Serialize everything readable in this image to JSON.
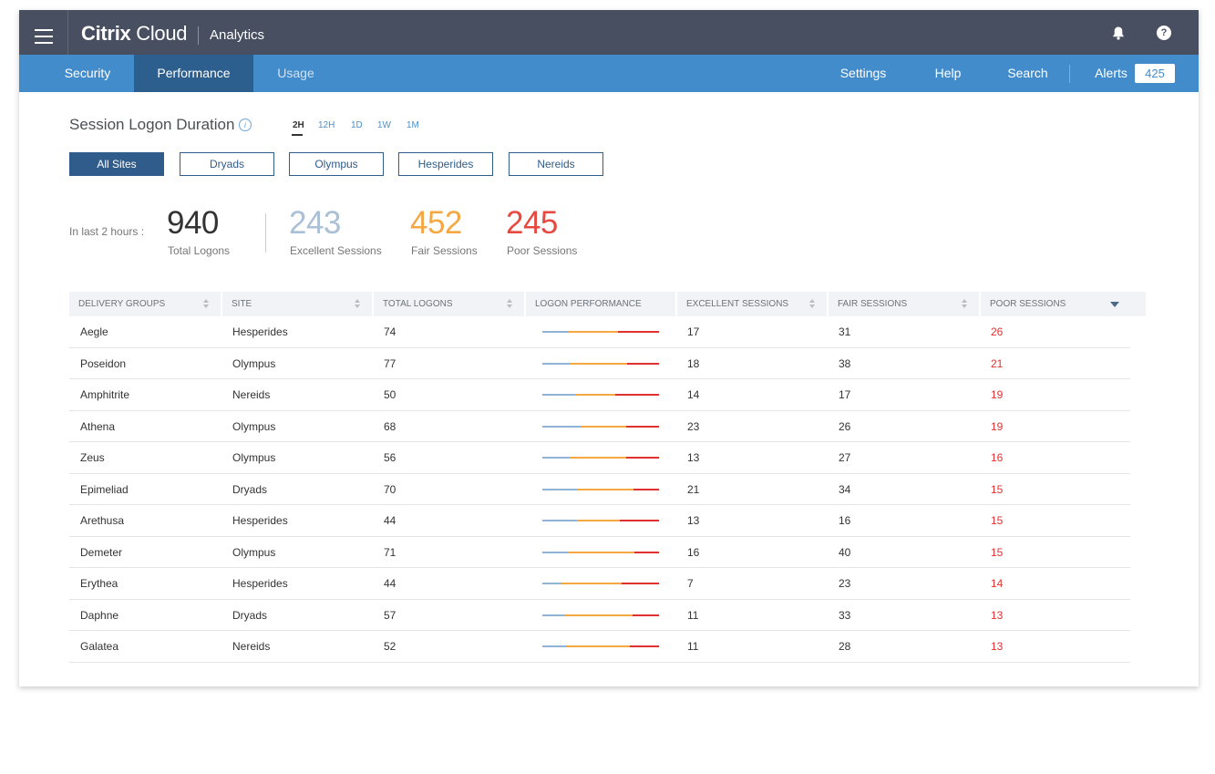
{
  "brand": {
    "name_bold": "Citrix",
    "name_light": " Cloud",
    "product": "Analytics"
  },
  "topbar": {
    "help_glyph": "?"
  },
  "nav": {
    "left": [
      {
        "label": "Security",
        "state": "normal"
      },
      {
        "label": "Performance",
        "state": "active"
      },
      {
        "label": "Usage",
        "state": "dim"
      }
    ],
    "right": [
      {
        "label": "Settings"
      },
      {
        "label": "Help"
      },
      {
        "label": "Search"
      },
      {
        "label": "Alerts"
      }
    ],
    "alerts_count": "425"
  },
  "section": {
    "title": "Session Logon Duration",
    "info_glyph": "i",
    "ranges": [
      "2H",
      "12H",
      "1D",
      "1W",
      "1M"
    ],
    "active_range": "2H"
  },
  "sites": {
    "buttons": [
      "All Sites",
      "Dryads",
      "Olympus",
      "Hesperides",
      "Nereids"
    ],
    "active": "All Sites"
  },
  "kpis": {
    "intro": "In last 2 hours :",
    "items": [
      {
        "value": "940",
        "label": "Total Logons",
        "color": "#333333"
      },
      {
        "value": "243",
        "label": "Excellent Sessions",
        "color": "#a9c0d6"
      },
      {
        "value": "452",
        "label": "Fair Sessions",
        "color": "#f5a742"
      },
      {
        "value": "245",
        "label": "Poor Sessions",
        "color": "#e8493f"
      }
    ]
  },
  "colors": {
    "excellent": "#8fb4d6",
    "fair": "#f5a742",
    "poor": "#e03131",
    "nav": "#438ccb",
    "topbar": "#474f61"
  },
  "table": {
    "headers": [
      "DELIVERY GROUPS",
      "SITE",
      "TOTAL LOGONS",
      "LOGON PERFORMANCE",
      "EXCELLENT SESSIONS",
      "FAIR SESSIONS",
      "POOR SESSIONS"
    ],
    "sorted_by": "POOR SESSIONS",
    "rows": [
      {
        "group": "Aegle",
        "site": "Hesperides",
        "total": "74",
        "excellent": "17",
        "fair": "31",
        "poor": "26"
      },
      {
        "group": "Poseidon",
        "site": "Olympus",
        "total": "77",
        "excellent": "18",
        "fair": "38",
        "poor": "21"
      },
      {
        "group": "Amphitrite",
        "site": "Nereids",
        "total": "50",
        "excellent": "14",
        "fair": "17",
        "poor": "19"
      },
      {
        "group": "Athena",
        "site": "Olympus",
        "total": "68",
        "excellent": "23",
        "fair": "26",
        "poor": "19"
      },
      {
        "group": "Zeus",
        "site": "Olympus",
        "total": "56",
        "excellent": "13",
        "fair": "27",
        "poor": "16"
      },
      {
        "group": "Epimeliad",
        "site": "Dryads",
        "total": "70",
        "excellent": "21",
        "fair": "34",
        "poor": "15"
      },
      {
        "group": "Arethusa",
        "site": "Hesperides",
        "total": "44",
        "excellent": "13",
        "fair": "16",
        "poor": "15"
      },
      {
        "group": "Demeter",
        "site": "Olympus",
        "total": "71",
        "excellent": "16",
        "fair": "40",
        "poor": "15"
      },
      {
        "group": "Erythea",
        "site": "Hesperides",
        "total": "44",
        "excellent": "7",
        "fair": "23",
        "poor": "14"
      },
      {
        "group": "Daphne",
        "site": "Dryads",
        "total": "57",
        "excellent": "11",
        "fair": "33",
        "poor": "13"
      },
      {
        "group": "Galatea",
        "site": "Nereids",
        "total": "52",
        "excellent": "11",
        "fair": "28",
        "poor": "13"
      }
    ]
  }
}
